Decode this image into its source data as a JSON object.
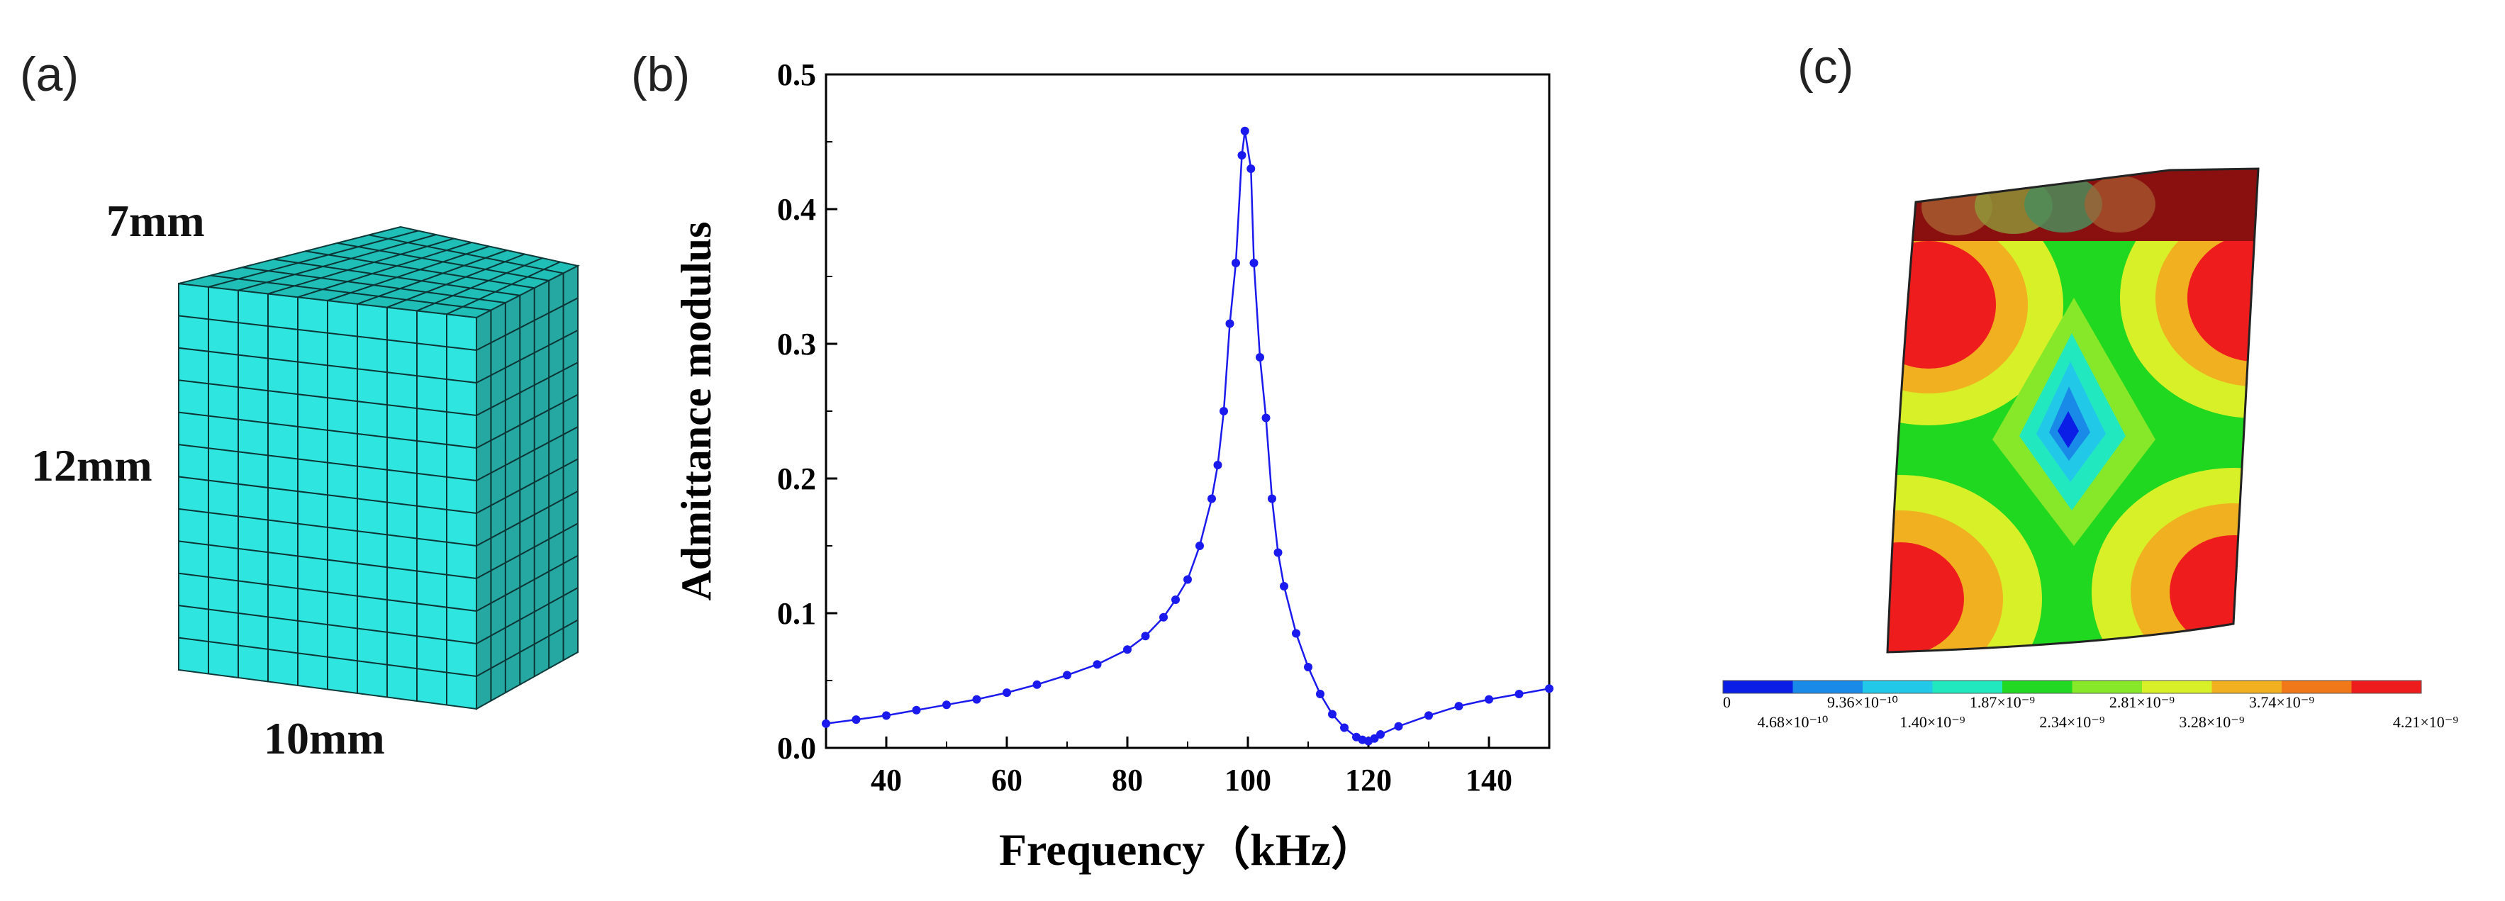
{
  "panel_a": {
    "label": "(a)",
    "dim_top": "7mm",
    "dim_left": "12mm",
    "dim_bottom": "10mm",
    "mesh_color": "#2ee6e0"
  },
  "panel_b": {
    "label": "(b)"
  },
  "panel_c": {
    "label": "(c)",
    "colorbar_top_labels": [
      "0",
      "9.36×10⁻¹⁰",
      "1.87×10⁻⁹",
      "2.81×10⁻⁹",
      "3.74×10⁻⁹"
    ],
    "colorbar_bottom_labels": [
      "4.68×10⁻¹⁰",
      "1.40×10⁻⁹",
      "2.34×10⁻⁹",
      "3.28×10⁻⁹",
      "4.21×10⁻⁹"
    ],
    "colorbar_colors": [
      "#0a1ee6",
      "#1a8ae8",
      "#22c8e8",
      "#22e8c0",
      "#22d822",
      "#86e828",
      "#d8f028",
      "#f0b020",
      "#f07818",
      "#ee1c1c"
    ]
  },
  "chart_data": {
    "type": "line",
    "title": "",
    "xlabel": "Frequency（kHz）",
    "ylabel": "Admittance modulus",
    "xlim": [
      30,
      150
    ],
    "ylim": [
      0,
      0.5
    ],
    "xticks": [
      40,
      60,
      80,
      100,
      120,
      140
    ],
    "yticks": [
      0.0,
      0.1,
      0.2,
      0.3,
      0.4,
      0.5
    ],
    "ytick_labels": [
      "0.0",
      "0.1",
      "0.2",
      "0.3",
      "0.4",
      "0.5"
    ],
    "series": [
      {
        "name": "Admittance modulus",
        "color": "#1a1aee",
        "x": [
          30,
          35,
          40,
          45,
          50,
          55,
          60,
          65,
          70,
          75,
          80,
          83,
          86,
          88,
          90,
          92,
          94,
          95,
          96,
          97,
          98,
          99,
          99.5,
          100.5,
          101,
          102,
          103,
          104,
          105,
          106,
          108,
          110,
          112,
          114,
          116,
          118,
          119,
          120,
          121,
          122,
          125,
          130,
          135,
          140,
          145,
          150
        ],
        "y": [
          0.018,
          0.021,
          0.024,
          0.028,
          0.032,
          0.036,
          0.041,
          0.047,
          0.054,
          0.062,
          0.073,
          0.083,
          0.097,
          0.11,
          0.125,
          0.15,
          0.185,
          0.21,
          0.25,
          0.315,
          0.36,
          0.44,
          0.458,
          0.43,
          0.36,
          0.29,
          0.245,
          0.185,
          0.145,
          0.12,
          0.085,
          0.06,
          0.04,
          0.025,
          0.015,
          0.008,
          0.006,
          0.005,
          0.007,
          0.01,
          0.016,
          0.024,
          0.031,
          0.036,
          0.04,
          0.044
        ]
      }
    ]
  }
}
